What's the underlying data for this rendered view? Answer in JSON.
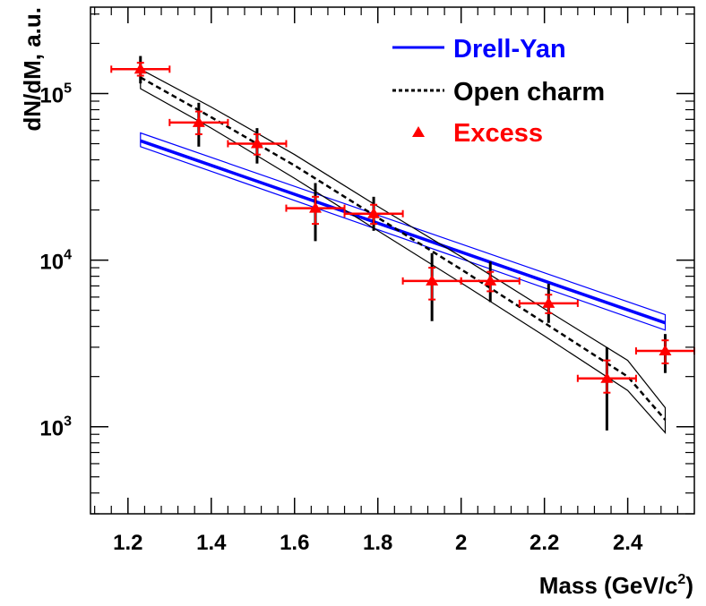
{
  "chart_data": {
    "type": "scatter",
    "xlabel_main": "Mass (GeV/c",
    "xlabel_sup": "2",
    "xlabel_close": ")",
    "ylabel": "dN/dM, a.u.",
    "xlim": [
      1.11,
      2.56
    ],
    "ylim": [
      300,
      330000
    ],
    "yscale": "log",
    "x_ticks": [
      1.2,
      1.4,
      1.6,
      1.8,
      2.0,
      2.2,
      2.4
    ],
    "x_tick_labels": [
      "1.2",
      "1.4",
      "1.6",
      "1.8",
      "2",
      "2.2",
      "2.4"
    ],
    "y_ticks": [
      {
        "value": 1000,
        "base": "10",
        "exp": "3"
      },
      {
        "value": 10000,
        "base": "10",
        "exp": "4"
      },
      {
        "value": 100000,
        "base": "10",
        "exp": "5"
      }
    ],
    "legend": {
      "placement": "top-right",
      "entries": [
        {
          "label": "Drell-Yan",
          "color": "#0000ff",
          "style": "solid"
        },
        {
          "label": "Open charm",
          "color": "#000000",
          "style": "dashed"
        },
        {
          "label": "Excess",
          "color": "#ff0000",
          "style": "marker"
        }
      ]
    },
    "series": [
      {
        "key": "drell_yan",
        "color": "#0000ff",
        "x": [
          1.23,
          2.49
        ],
        "y": [
          52000,
          4200
        ],
        "band_upper": [
          58000,
          4700
        ],
        "band_lower": [
          48000,
          3800
        ]
      },
      {
        "key": "open_charm",
        "color": "#000000",
        "x": [
          1.23,
          1.4,
          1.6,
          1.8,
          2.0,
          2.2,
          2.4,
          2.49
        ],
        "y": [
          125000,
          72000,
          37000,
          18000,
          8800,
          4200,
          2000,
          1100
        ],
        "band_upper": [
          140000,
          83000,
          43000,
          21000,
          10500,
          5100,
          2500,
          1300
        ],
        "band_lower": [
          107000,
          62000,
          31000,
          15000,
          7300,
          3500,
          1650,
          920
        ]
      },
      {
        "key": "excess",
        "color": "#ff0000",
        "points": [
          {
            "x": 1.23,
            "y": 140000,
            "xerr": 0.07,
            "stat": [
              128000,
              153000
            ],
            "syst": [
              115000,
              168000
            ]
          },
          {
            "x": 1.37,
            "y": 67000,
            "xerr": 0.07,
            "stat": [
              57000,
              78000
            ],
            "syst": [
              48000,
              88000
            ]
          },
          {
            "x": 1.51,
            "y": 50000,
            "xerr": 0.07,
            "stat": [
              43000,
              57000
            ],
            "syst": [
              38000,
              62000
            ]
          },
          {
            "x": 1.65,
            "y": 20500,
            "xerr": 0.07,
            "stat": [
              16500,
              24000
            ],
            "syst": [
              13000,
              29000
            ]
          },
          {
            "x": 1.79,
            "y": 19000,
            "xerr": 0.07,
            "stat": [
              16500,
              21500
            ],
            "syst": [
              15000,
              24000
            ]
          },
          {
            "x": 1.93,
            "y": 7500,
            "xerr": 0.07,
            "stat": [
              5800,
              9000
            ],
            "syst": [
              4300,
              11000
            ]
          },
          {
            "x": 2.07,
            "y": 7500,
            "xerr": 0.07,
            "stat": [
              6500,
              8500
            ],
            "syst": [
              5600,
              9800
            ]
          },
          {
            "x": 2.21,
            "y": 5500,
            "xerr": 0.07,
            "stat": [
              4800,
              6200
            ],
            "syst": [
              4200,
              7200
            ]
          },
          {
            "x": 2.35,
            "y": 1950,
            "xerr": 0.07,
            "stat": [
              1600,
              2500
            ],
            "syst": [
              950,
              3000
            ]
          },
          {
            "x": 2.49,
            "y": 2850,
            "xerr": 0.07,
            "stat": [
              2400,
              3300
            ],
            "syst": [
              2100,
              3600
            ]
          }
        ]
      }
    ]
  }
}
